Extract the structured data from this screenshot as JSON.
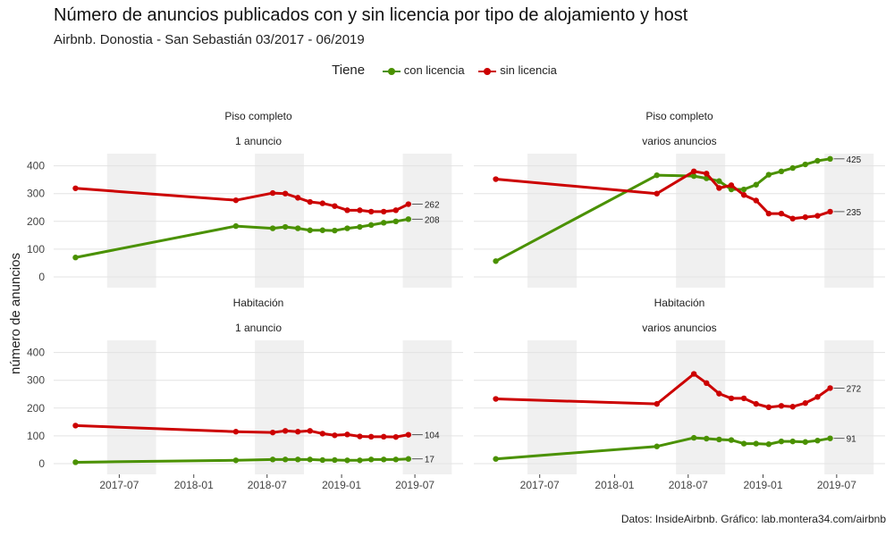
{
  "title": "Número de anuncios publicados con y sin licencia por tipo de alojamiento y host",
  "subtitle": "Airbnb. Donostia - San Sebastián 03/2017 - 06/2019",
  "caption": "Datos: InsideAirbnb. Gráfico: lab.montera34.com/airbnb",
  "legend": {
    "title": "Tiene",
    "items": [
      {
        "label": "con licencia",
        "color": "#4a9100"
      },
      {
        "label": "sin licencia",
        "color": "#cc0000"
      }
    ]
  },
  "ylabel": "número de anuncios",
  "chart_data": {
    "type": "line",
    "ylabel": "número de anuncios",
    "ylim": [
      0,
      450
    ],
    "yticks": [
      0,
      100,
      200,
      300,
      400
    ],
    "xlim": [
      "2017-01-20",
      "2019-10-28"
    ],
    "xticks": [
      "2017-07-01",
      "2018-01-01",
      "2018-07-01",
      "2019-01-01",
      "2019-07-01"
    ],
    "xtick_labels": [
      "2017-07",
      "2018-01",
      "2018-07",
      "2019-01",
      "2019-07"
    ],
    "shaded_periods": [
      [
        "2017-06-01",
        "2017-09-30"
      ],
      [
        "2018-06-01",
        "2018-09-30"
      ],
      [
        "2019-06-01",
        "2019-09-30"
      ]
    ],
    "grid": true,
    "legend_position": "top",
    "dates": [
      "2017-03-15",
      "2018-04-15",
      "2018-07-15",
      "2018-08-15",
      "2018-09-15",
      "2018-10-15",
      "2018-11-15",
      "2018-12-15",
      "2019-01-15",
      "2019-02-15",
      "2019-03-15",
      "2019-04-15",
      "2019-05-15",
      "2019-06-15"
    ],
    "panels": [
      {
        "strip": [
          "Piso completo",
          "1 anuncio"
        ],
        "series": [
          {
            "name": "con licencia",
            "color": "#4a9100",
            "values": [
              70,
              183,
              175,
              180,
              175,
              168,
              168,
              167,
              175,
              180,
              187,
              195,
              200,
              208
            ],
            "end_label": "208"
          },
          {
            "name": "sin licencia",
            "color": "#cc0000",
            "values": [
              319,
              276,
              302,
              300,
              285,
              270,
              265,
              255,
              240,
              240,
              235,
              235,
              240,
              262
            ],
            "end_label": "262"
          }
        ]
      },
      {
        "strip": [
          "Piso completo",
          "varios anuncios"
        ],
        "series": [
          {
            "name": "con licencia",
            "color": "#4a9100",
            "values": [
              57,
              366,
              363,
              355,
              345,
              315,
              315,
              332,
              368,
              380,
              392,
              405,
              418,
              425
            ],
            "end_label": "425"
          },
          {
            "name": "sin licencia",
            "color": "#cc0000",
            "values": [
              352,
              300,
              380,
              372,
              320,
              330,
              295,
              275,
              228,
              228,
              210,
              215,
              220,
              235
            ],
            "end_label": "235"
          }
        ]
      },
      {
        "strip": [
          "Habitación",
          "1 anuncio"
        ],
        "series": [
          {
            "name": "con licencia",
            "color": "#4a9100",
            "values": [
              5,
              12,
              15,
              15,
              15,
              15,
              13,
              13,
              12,
              12,
              15,
              15,
              15,
              17
            ],
            "end_label": "17"
          },
          {
            "name": "sin licencia",
            "color": "#cc0000",
            "values": [
              137,
              115,
              112,
              118,
              115,
              118,
              108,
              102,
              105,
              98,
              97,
              97,
              96,
              104
            ],
            "end_label": "104"
          }
        ]
      },
      {
        "strip": [
          "Habitación",
          "varios anuncios"
        ],
        "series": [
          {
            "name": "con licencia",
            "color": "#4a9100",
            "values": [
              17,
              62,
              93,
              90,
              87,
              85,
              72,
              72,
              70,
              80,
              80,
              78,
              83,
              91
            ],
            "end_label": "91"
          },
          {
            "name": "sin licencia",
            "color": "#cc0000",
            "values": [
              233,
              215,
              323,
              290,
              252,
              235,
              235,
              215,
              203,
              208,
              205,
              218,
              240,
              272
            ],
            "end_label": "272"
          }
        ]
      }
    ]
  }
}
